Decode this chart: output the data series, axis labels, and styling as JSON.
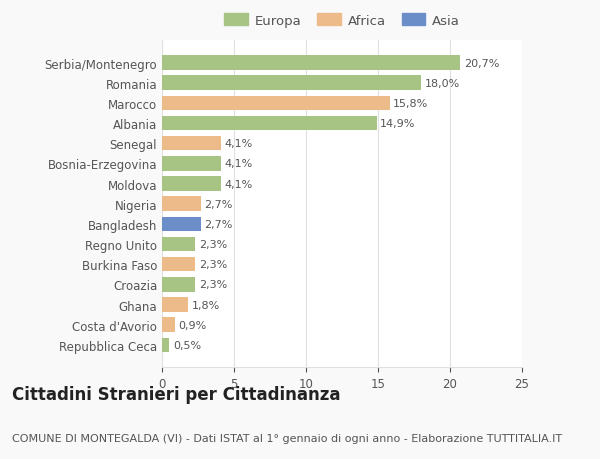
{
  "categories": [
    "Serbia/Montenegro",
    "Romania",
    "Marocco",
    "Albania",
    "Senegal",
    "Bosnia-Erzegovina",
    "Moldova",
    "Nigeria",
    "Bangladesh",
    "Regno Unito",
    "Burkina Faso",
    "Croazia",
    "Ghana",
    "Costa d'Avorio",
    "Repubblica Ceca"
  ],
  "values": [
    20.7,
    18.0,
    15.8,
    14.9,
    4.1,
    4.1,
    4.1,
    2.7,
    2.7,
    2.3,
    2.3,
    2.3,
    1.8,
    0.9,
    0.5
  ],
  "labels": [
    "20,7%",
    "18,0%",
    "15,8%",
    "14,9%",
    "4,1%",
    "4,1%",
    "4,1%",
    "2,7%",
    "2,7%",
    "2,3%",
    "2,3%",
    "2,3%",
    "1,8%",
    "0,9%",
    "0,5%"
  ],
  "bar_colors": [
    "#a8c484",
    "#a8c484",
    "#edbb8a",
    "#a8c484",
    "#edbb8a",
    "#a8c484",
    "#a8c484",
    "#edbb8a",
    "#6b8ec8",
    "#a8c484",
    "#edbb8a",
    "#a8c484",
    "#edbb8a",
    "#edbb8a",
    "#a8c484"
  ],
  "legend_colors": {
    "Europa": "#a8c484",
    "Africa": "#edbb8a",
    "Asia": "#6b8ec8"
  },
  "xlim": [
    0,
    25
  ],
  "xticks": [
    0,
    5,
    10,
    15,
    20,
    25
  ],
  "title": "Cittadini Stranieri per Cittadinanza",
  "subtitle": "COMUNE DI MONTEGALDA (VI) - Dati ISTAT al 1° gennaio di ogni anno - Elaborazione TUTTITALIA.IT",
  "background_color": "#f9f9f9",
  "plot_bg_color": "#ffffff",
  "grid_color": "#e0e0e0",
  "text_color": "#555555",
  "title_fontsize": 12,
  "subtitle_fontsize": 8,
  "label_fontsize": 8,
  "tick_fontsize": 8.5
}
